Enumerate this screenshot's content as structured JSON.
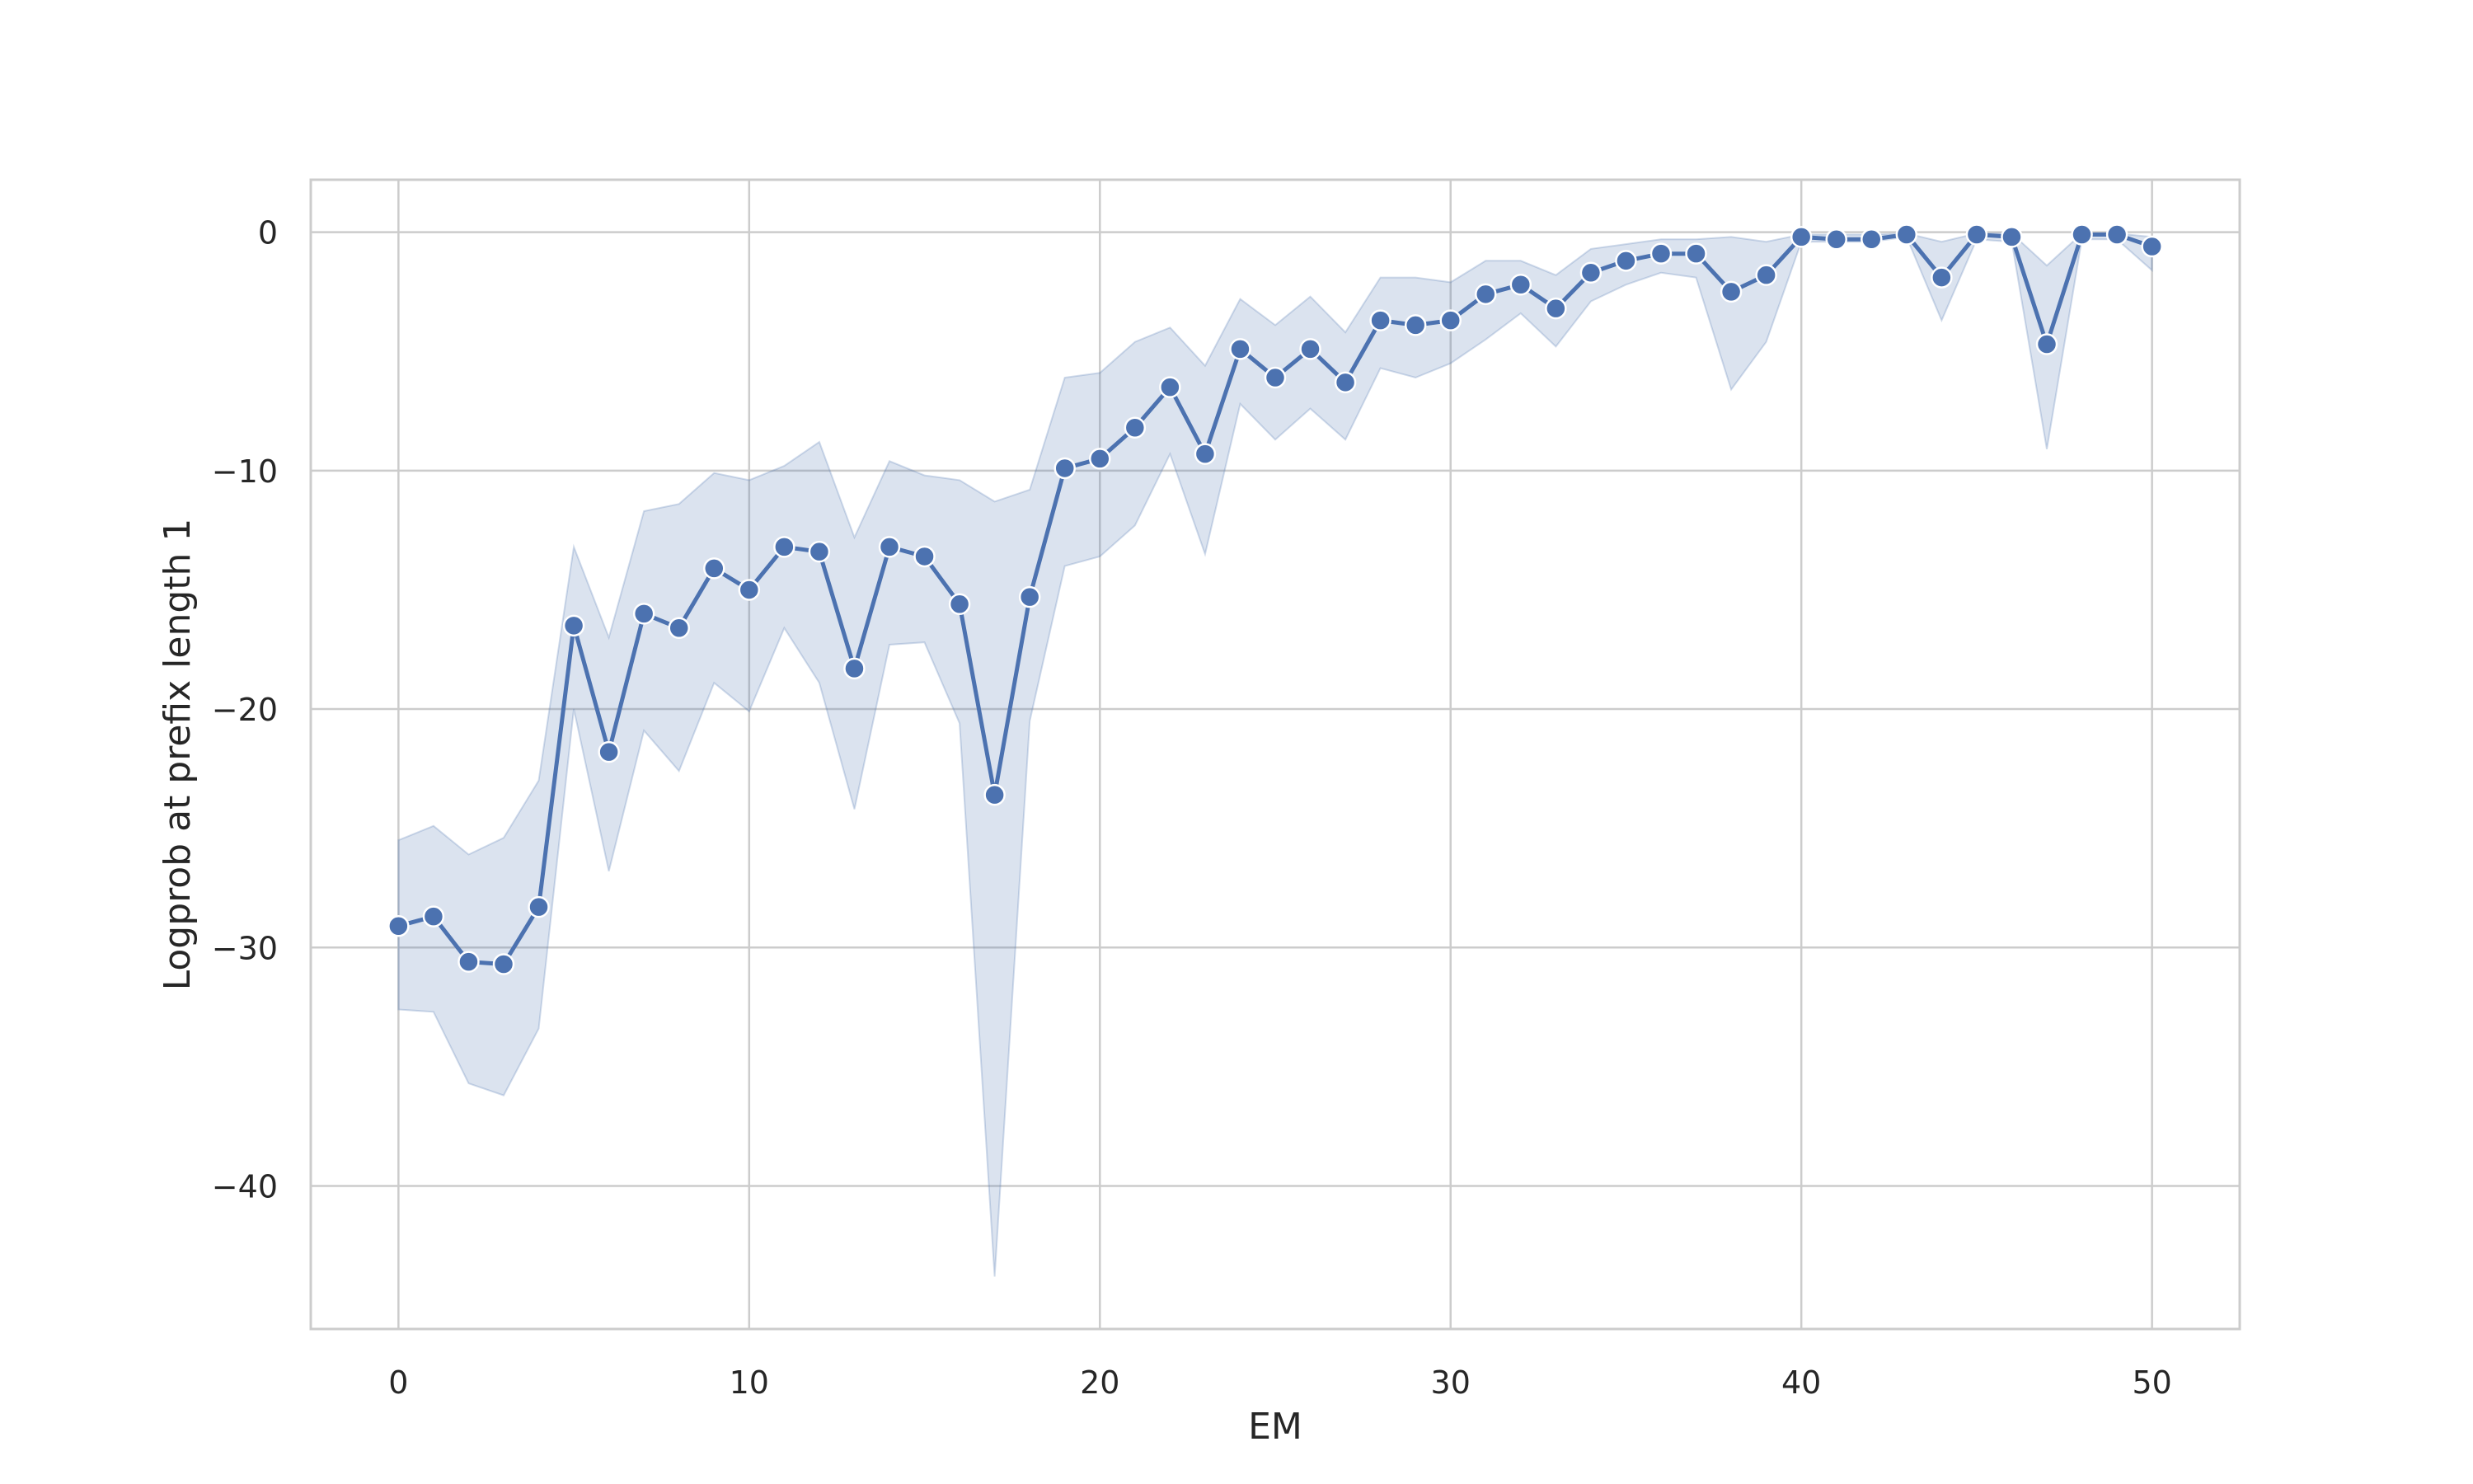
{
  "chart_data": {
    "type": "line",
    "title": "",
    "xlabel": "EM",
    "ylabel": "Logprob at prefix length 1",
    "xlim": [
      -2.5,
      52.5
    ],
    "ylim": [
      -46,
      2.2
    ],
    "x_ticks": [
      0,
      10,
      20,
      30,
      40,
      50
    ],
    "y_ticks": [
      0,
      -10,
      -20,
      -30,
      -40
    ],
    "x_tick_labels": [
      "0",
      "10",
      "20",
      "30",
      "40",
      "50"
    ],
    "y_tick_labels": [
      "0",
      "−10",
      "−20",
      "−30",
      "−40"
    ],
    "grid": true,
    "legend": "none",
    "colors": {
      "line": "#4c72b0",
      "band": "#4c72b0",
      "grid": "#cccccc",
      "marker_edge": "#ffffff"
    },
    "series": [
      {
        "x": [
          0,
          1,
          2,
          3,
          4,
          5,
          6,
          7,
          8,
          9,
          10,
          11,
          12,
          13,
          14,
          15,
          16,
          17,
          18,
          19,
          20,
          21,
          22,
          23,
          24,
          25,
          26,
          27,
          28,
          29,
          30,
          31,
          32,
          33,
          34,
          35,
          36,
          37,
          38,
          39,
          40,
          41,
          42,
          43,
          44,
          45,
          46,
          47,
          48,
          49,
          50
        ],
        "y": [
          -29.1,
          -28.7,
          -30.6,
          -30.7,
          -28.3,
          -16.5,
          -21.8,
          -16.0,
          -16.6,
          -14.1,
          -15.0,
          -13.2,
          -13.4,
          -18.3,
          -13.2,
          -13.6,
          -15.6,
          -23.6,
          -15.3,
          -9.9,
          -9.5,
          -8.2,
          -6.5,
          -9.3,
          -4.9,
          -6.1,
          -4.9,
          -6.3,
          -3.7,
          -3.9,
          -3.7,
          -2.6,
          -2.2,
          -3.2,
          -1.7,
          -1.2,
          -0.9,
          -0.9,
          -2.5,
          -1.8,
          -0.2,
          -0.3,
          -0.3,
          -0.1,
          -1.9,
          -0.1,
          -0.2,
          -4.7,
          -0.1,
          -0.1,
          -0.6
        ],
        "ci_lower": [
          -32.6,
          -32.7,
          -35.7,
          -36.2,
          -33.4,
          -20.0,
          -26.8,
          -20.9,
          -22.6,
          -18.9,
          -20.1,
          -16.6,
          -18.9,
          -24.2,
          -17.3,
          -17.2,
          -20.6,
          -43.8,
          -20.5,
          -14.0,
          -13.6,
          -12.3,
          -9.3,
          -13.5,
          -7.2,
          -8.7,
          -7.4,
          -8.7,
          -5.7,
          -6.1,
          -5.5,
          -4.5,
          -3.4,
          -4.8,
          -2.9,
          -2.2,
          -1.7,
          -1.9,
          -6.6,
          -4.6,
          -0.4,
          -0.4,
          -0.4,
          -0.2,
          -3.7,
          -0.3,
          -0.4,
          -9.1,
          -0.3,
          -0.3,
          -1.6
        ],
        "ci_upper": [
          -25.5,
          -24.9,
          -26.1,
          -25.4,
          -23.0,
          -13.2,
          -17.0,
          -11.7,
          -11.4,
          -10.1,
          -10.4,
          -9.8,
          -8.8,
          -12.8,
          -9.6,
          -10.2,
          -10.4,
          -11.3,
          -10.8,
          -6.1,
          -5.9,
          -4.6,
          -4.0,
          -5.6,
          -2.8,
          -3.9,
          -2.7,
          -4.2,
          -1.9,
          -1.9,
          -2.1,
          -1.2,
          -1.2,
          -1.8,
          -0.7,
          -0.5,
          -0.3,
          -0.3,
          -0.2,
          -0.4,
          -0.1,
          -0.1,
          -0.1,
          -0.05,
          -0.4,
          -0.05,
          -0.05,
          -1.4,
          -0.05,
          -0.05,
          -0.2
        ]
      }
    ]
  }
}
